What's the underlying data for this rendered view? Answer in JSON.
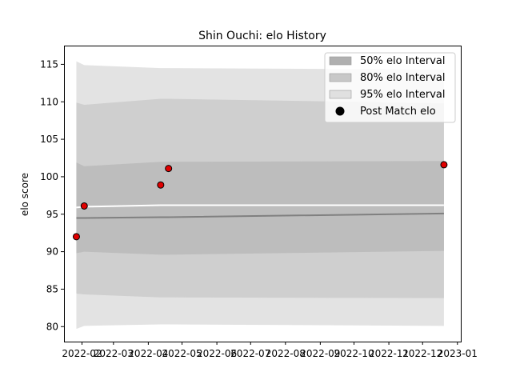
{
  "chart_data": {
    "type": "line",
    "title": "Shin Ouchi: elo History",
    "xlabel": "",
    "ylabel": "elo score",
    "xlim": [
      "2022-01-16",
      "2023-01-04"
    ],
    "ylim": [
      78.0,
      117.5
    ],
    "x_ticks": [
      "2022-02",
      "2022-03",
      "2022-04",
      "2022-05",
      "2022-06",
      "2022-07",
      "2022-08",
      "2022-09",
      "2022-10",
      "2022-11",
      "2022-12",
      "2023-01"
    ],
    "y_ticks": [
      80,
      85,
      90,
      95,
      100,
      105,
      110,
      115
    ],
    "grid": false,
    "legend_position": "top-right",
    "bands": [
      {
        "name": "95% elo Interval",
        "color": "#e3e3e3",
        "x": [
          "2022-01-27",
          "2022-02-03",
          "2022-04-12",
          "2022-04-19",
          "2022-12-20"
        ],
        "lower": [
          79.7,
          80.1,
          80.3,
          80.3,
          80.1
        ],
        "upper": [
          115.4,
          114.9,
          114.5,
          114.5,
          114.3
        ]
      },
      {
        "name": "80% elo Interval",
        "color": "#cfcfcf",
        "x": [
          "2022-01-27",
          "2022-02-03",
          "2022-04-12",
          "2022-04-19",
          "2022-12-20"
        ],
        "lower": [
          84.4,
          84.3,
          83.9,
          83.9,
          83.8
        ],
        "upper": [
          109.9,
          109.6,
          110.4,
          110.4,
          109.8
        ]
      },
      {
        "name": "50% elo Interval",
        "color": "#bdbdbd",
        "x": [
          "2022-01-27",
          "2022-02-03",
          "2022-04-12",
          "2022-04-19",
          "2022-12-20"
        ],
        "lower": [
          89.8,
          90.0,
          89.6,
          89.6,
          90.1
        ],
        "upper": [
          101.9,
          101.4,
          102.0,
          102.0,
          102.1
        ]
      }
    ],
    "series": [
      {
        "kind": "line",
        "color": "#ffffff",
        "x": [
          "2022-01-27",
          "2022-02-03",
          "2022-04-12",
          "2022-04-19",
          "2022-12-20"
        ],
        "values": [
          95.9,
          96.0,
          96.2,
          96.2,
          96.2
        ]
      },
      {
        "kind": "line",
        "color": "#808080",
        "x": [
          "2022-01-27",
          "2022-02-03",
          "2022-04-12",
          "2022-04-19",
          "2022-12-20"
        ],
        "values": [
          94.5,
          94.5,
          94.6,
          94.6,
          95.1
        ]
      },
      {
        "kind": "scatter",
        "name": "Post Match elo",
        "color": "#e00000",
        "x": [
          "2022-01-27",
          "2022-02-03",
          "2022-04-12",
          "2022-04-19",
          "2022-12-20"
        ],
        "values": [
          92.0,
          96.1,
          98.9,
          101.1,
          101.6
        ]
      }
    ],
    "legend": [
      "50% elo Interval",
      "80% elo Interval",
      "95% elo Interval",
      "Post Match elo"
    ]
  }
}
